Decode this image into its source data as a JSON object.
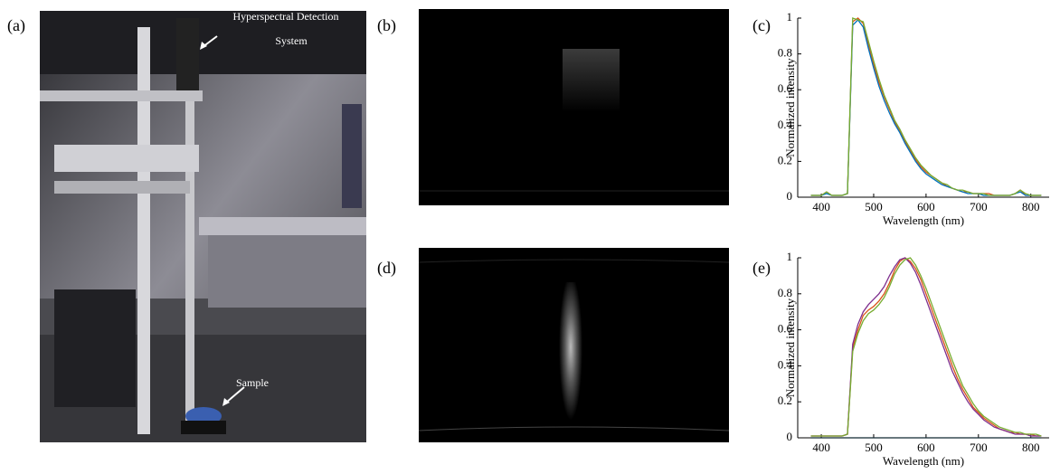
{
  "labels": [
    "(a)",
    "(b)",
    "(c)",
    "(d)",
    "(e)"
  ],
  "photo_annotations": {
    "detector": [
      "Hyperspectral Detection",
      "System"
    ],
    "sample": "Sample"
  },
  "chart_data": [
    {
      "type": "line",
      "xlabel": "Wavelength (nm)",
      "ylabel": "Normalized intensity",
      "xlim": [
        355,
        835
      ],
      "xticks": [
        400,
        500,
        600,
        700,
        800
      ],
      "ylim": [
        0,
        1
      ],
      "yticks": [
        0,
        0.2,
        0.4,
        0.6,
        0.8,
        1
      ],
      "grid": false,
      "x": [
        380,
        390,
        400,
        410,
        420,
        430,
        440,
        450,
        460,
        470,
        480,
        490,
        500,
        510,
        520,
        530,
        540,
        550,
        560,
        570,
        580,
        590,
        600,
        610,
        620,
        630,
        640,
        650,
        660,
        670,
        680,
        690,
        700,
        710,
        720,
        730,
        740,
        750,
        760,
        770,
        780,
        790,
        800,
        810,
        820
      ],
      "series": [
        {
          "color": "#d95319",
          "values": [
            0.01,
            0.01,
            0.01,
            0.03,
            0.01,
            0.01,
            0.01,
            0.02,
            0.98,
            1.0,
            0.97,
            0.85,
            0.74,
            0.64,
            0.56,
            0.49,
            0.42,
            0.37,
            0.31,
            0.26,
            0.21,
            0.17,
            0.14,
            0.12,
            0.1,
            0.08,
            0.06,
            0.05,
            0.04,
            0.03,
            0.03,
            0.02,
            0.02,
            0.02,
            0.02,
            0.01,
            0.01,
            0.01,
            0.01,
            0.02,
            0.04,
            0.01,
            0.01,
            0.01,
            0.01
          ]
        },
        {
          "color": "#0072bd",
          "values": [
            0.01,
            0.01,
            0.01,
            0.02,
            0.01,
            0.01,
            0.01,
            0.02,
            0.96,
            0.99,
            0.95,
            0.83,
            0.72,
            0.62,
            0.54,
            0.47,
            0.41,
            0.36,
            0.3,
            0.25,
            0.2,
            0.16,
            0.13,
            0.11,
            0.09,
            0.07,
            0.06,
            0.05,
            0.04,
            0.03,
            0.02,
            0.02,
            0.02,
            0.01,
            0.01,
            0.01,
            0.01,
            0.01,
            0.01,
            0.02,
            0.03,
            0.01,
            0.01,
            0.01,
            0.01
          ]
        },
        {
          "color": "#77ac30",
          "values": [
            0.01,
            0.01,
            0.01,
            0.03,
            0.01,
            0.01,
            0.01,
            0.02,
            1.0,
            0.99,
            0.98,
            0.87,
            0.76,
            0.66,
            0.57,
            0.5,
            0.43,
            0.38,
            0.32,
            0.27,
            0.22,
            0.18,
            0.15,
            0.12,
            0.1,
            0.08,
            0.07,
            0.05,
            0.04,
            0.04,
            0.03,
            0.02,
            0.02,
            0.02,
            0.01,
            0.01,
            0.01,
            0.01,
            0.01,
            0.02,
            0.04,
            0.02,
            0.01,
            0.01,
            0.01
          ]
        }
      ]
    },
    {
      "type": "line",
      "xlabel": "Wavelength (nm)",
      "ylabel": "Normalized intensity",
      "xlim": [
        355,
        835
      ],
      "xticks": [
        400,
        500,
        600,
        700,
        800
      ],
      "ylim": [
        0,
        1
      ],
      "yticks": [
        0,
        0.2,
        0.4,
        0.6,
        0.8,
        1
      ],
      "grid": false,
      "x": [
        380,
        390,
        400,
        410,
        420,
        430,
        440,
        450,
        460,
        470,
        480,
        490,
        500,
        510,
        520,
        530,
        540,
        550,
        560,
        570,
        580,
        590,
        600,
        610,
        620,
        630,
        640,
        650,
        660,
        670,
        680,
        690,
        700,
        710,
        720,
        730,
        740,
        750,
        760,
        770,
        780,
        790,
        800,
        810,
        820
      ],
      "series": [
        {
          "color": "#d95319",
          "values": [
            0.01,
            0.01,
            0.01,
            0.01,
            0.01,
            0.01,
            0.01,
            0.02,
            0.5,
            0.6,
            0.68,
            0.71,
            0.73,
            0.76,
            0.8,
            0.86,
            0.93,
            0.98,
            1.0,
            0.98,
            0.94,
            0.88,
            0.8,
            0.72,
            0.64,
            0.56,
            0.48,
            0.4,
            0.33,
            0.27,
            0.22,
            0.17,
            0.14,
            0.11,
            0.09,
            0.07,
            0.05,
            0.04,
            0.03,
            0.03,
            0.02,
            0.02,
            0.02,
            0.01,
            0.01
          ]
        },
        {
          "color": "#7e2f8e",
          "values": [
            0.01,
            0.01,
            0.01,
            0.01,
            0.01,
            0.01,
            0.01,
            0.02,
            0.52,
            0.63,
            0.7,
            0.74,
            0.77,
            0.8,
            0.84,
            0.9,
            0.95,
            0.99,
            1.0,
            0.97,
            0.92,
            0.85,
            0.77,
            0.69,
            0.61,
            0.53,
            0.45,
            0.37,
            0.31,
            0.25,
            0.2,
            0.16,
            0.13,
            0.1,
            0.08,
            0.06,
            0.05,
            0.04,
            0.03,
            0.02,
            0.02,
            0.02,
            0.01,
            0.01,
            0.01
          ]
        },
        {
          "color": "#77ac30",
          "values": [
            0.01,
            0.01,
            0.01,
            0.01,
            0.01,
            0.01,
            0.01,
            0.02,
            0.48,
            0.58,
            0.65,
            0.69,
            0.71,
            0.74,
            0.78,
            0.84,
            0.91,
            0.96,
            0.99,
            1.0,
            0.96,
            0.9,
            0.83,
            0.75,
            0.67,
            0.59,
            0.51,
            0.43,
            0.36,
            0.29,
            0.24,
            0.19,
            0.15,
            0.12,
            0.1,
            0.08,
            0.06,
            0.05,
            0.04,
            0.03,
            0.03,
            0.02,
            0.02,
            0.02,
            0.01
          ]
        },
        {
          "color": "#4dbeee",
          "values": [
            0,
            0,
            0,
            0,
            0,
            0,
            0,
            0,
            0,
            0,
            0,
            0,
            0,
            0,
            0,
            0,
            0,
            0,
            0,
            0,
            0,
            0,
            0,
            0,
            0,
            0,
            0,
            0,
            0,
            0,
            0,
            0,
            0,
            0,
            0,
            0,
            0,
            0,
            0,
            0,
            0,
            0,
            0,
            0,
            0
          ]
        }
      ]
    }
  ]
}
